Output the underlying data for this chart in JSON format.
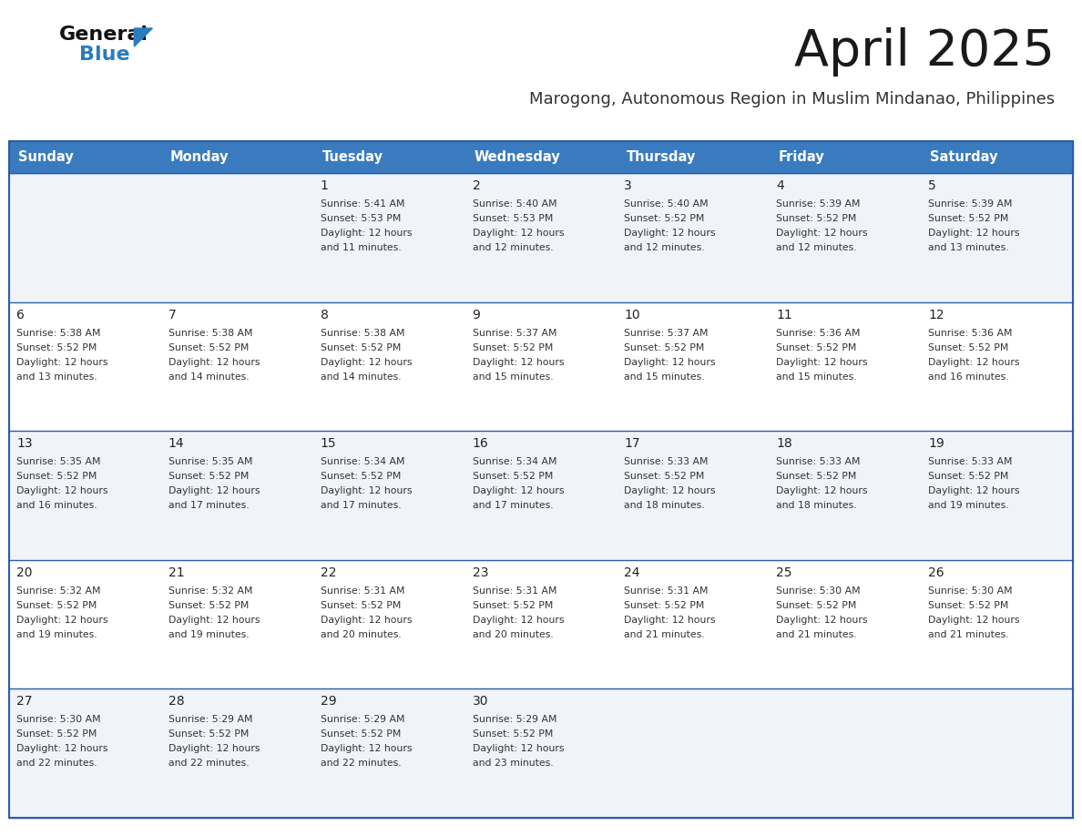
{
  "title": "April 2025",
  "subtitle": "Marogong, Autonomous Region in Muslim Mindanao, Philippines",
  "title_color": "#1a1a1a",
  "subtitle_color": "#333333",
  "header_bg_color": "#3a7bbf",
  "header_text_color": "#ffffff",
  "cell_bg_even": "#f0f4f8",
  "cell_bg_odd": "#ffffff",
  "row_line_color": "#2a5ca8",
  "text_color": "#333333",
  "day_num_color": "#222222",
  "days_of_week": [
    "Sunday",
    "Monday",
    "Tuesday",
    "Wednesday",
    "Thursday",
    "Friday",
    "Saturday"
  ],
  "logo_color1": "#111111",
  "logo_color2": "#2a7bbf",
  "logo_triangle_color": "#2a7bbf",
  "calendar": [
    [
      {
        "day": null,
        "sunrise": null,
        "sunset": null,
        "daylight": null
      },
      {
        "day": null,
        "sunrise": null,
        "sunset": null,
        "daylight": null
      },
      {
        "day": 1,
        "sunrise": "5:41 AM",
        "sunset": "5:53 PM",
        "daylight": "12 hours\nand 11 minutes."
      },
      {
        "day": 2,
        "sunrise": "5:40 AM",
        "sunset": "5:53 PM",
        "daylight": "12 hours\nand 12 minutes."
      },
      {
        "day": 3,
        "sunrise": "5:40 AM",
        "sunset": "5:52 PM",
        "daylight": "12 hours\nand 12 minutes."
      },
      {
        "day": 4,
        "sunrise": "5:39 AM",
        "sunset": "5:52 PM",
        "daylight": "12 hours\nand 12 minutes."
      },
      {
        "day": 5,
        "sunrise": "5:39 AM",
        "sunset": "5:52 PM",
        "daylight": "12 hours\nand 13 minutes."
      }
    ],
    [
      {
        "day": 6,
        "sunrise": "5:38 AM",
        "sunset": "5:52 PM",
        "daylight": "12 hours\nand 13 minutes."
      },
      {
        "day": 7,
        "sunrise": "5:38 AM",
        "sunset": "5:52 PM",
        "daylight": "12 hours\nand 14 minutes."
      },
      {
        "day": 8,
        "sunrise": "5:38 AM",
        "sunset": "5:52 PM",
        "daylight": "12 hours\nand 14 minutes."
      },
      {
        "day": 9,
        "sunrise": "5:37 AM",
        "sunset": "5:52 PM",
        "daylight": "12 hours\nand 15 minutes."
      },
      {
        "day": 10,
        "sunrise": "5:37 AM",
        "sunset": "5:52 PM",
        "daylight": "12 hours\nand 15 minutes."
      },
      {
        "day": 11,
        "sunrise": "5:36 AM",
        "sunset": "5:52 PM",
        "daylight": "12 hours\nand 15 minutes."
      },
      {
        "day": 12,
        "sunrise": "5:36 AM",
        "sunset": "5:52 PM",
        "daylight": "12 hours\nand 16 minutes."
      }
    ],
    [
      {
        "day": 13,
        "sunrise": "5:35 AM",
        "sunset": "5:52 PM",
        "daylight": "12 hours\nand 16 minutes."
      },
      {
        "day": 14,
        "sunrise": "5:35 AM",
        "sunset": "5:52 PM",
        "daylight": "12 hours\nand 17 minutes."
      },
      {
        "day": 15,
        "sunrise": "5:34 AM",
        "sunset": "5:52 PM",
        "daylight": "12 hours\nand 17 minutes."
      },
      {
        "day": 16,
        "sunrise": "5:34 AM",
        "sunset": "5:52 PM",
        "daylight": "12 hours\nand 17 minutes."
      },
      {
        "day": 17,
        "sunrise": "5:33 AM",
        "sunset": "5:52 PM",
        "daylight": "12 hours\nand 18 minutes."
      },
      {
        "day": 18,
        "sunrise": "5:33 AM",
        "sunset": "5:52 PM",
        "daylight": "12 hours\nand 18 minutes."
      },
      {
        "day": 19,
        "sunrise": "5:33 AM",
        "sunset": "5:52 PM",
        "daylight": "12 hours\nand 19 minutes."
      }
    ],
    [
      {
        "day": 20,
        "sunrise": "5:32 AM",
        "sunset": "5:52 PM",
        "daylight": "12 hours\nand 19 minutes."
      },
      {
        "day": 21,
        "sunrise": "5:32 AM",
        "sunset": "5:52 PM",
        "daylight": "12 hours\nand 19 minutes."
      },
      {
        "day": 22,
        "sunrise": "5:31 AM",
        "sunset": "5:52 PM",
        "daylight": "12 hours\nand 20 minutes."
      },
      {
        "day": 23,
        "sunrise": "5:31 AM",
        "sunset": "5:52 PM",
        "daylight": "12 hours\nand 20 minutes."
      },
      {
        "day": 24,
        "sunrise": "5:31 AM",
        "sunset": "5:52 PM",
        "daylight": "12 hours\nand 21 minutes."
      },
      {
        "day": 25,
        "sunrise": "5:30 AM",
        "sunset": "5:52 PM",
        "daylight": "12 hours\nand 21 minutes."
      },
      {
        "day": 26,
        "sunrise": "5:30 AM",
        "sunset": "5:52 PM",
        "daylight": "12 hours\nand 21 minutes."
      }
    ],
    [
      {
        "day": 27,
        "sunrise": "5:30 AM",
        "sunset": "5:52 PM",
        "daylight": "12 hours\nand 22 minutes."
      },
      {
        "day": 28,
        "sunrise": "5:29 AM",
        "sunset": "5:52 PM",
        "daylight": "12 hours\nand 22 minutes."
      },
      {
        "day": 29,
        "sunrise": "5:29 AM",
        "sunset": "5:52 PM",
        "daylight": "12 hours\nand 22 minutes."
      },
      {
        "day": 30,
        "sunrise": "5:29 AM",
        "sunset": "5:52 PM",
        "daylight": "12 hours\nand 23 minutes."
      },
      {
        "day": null,
        "sunrise": null,
        "sunset": null,
        "daylight": null
      },
      {
        "day": null,
        "sunrise": null,
        "sunset": null,
        "daylight": null
      },
      {
        "day": null,
        "sunrise": null,
        "sunset": null,
        "daylight": null
      }
    ]
  ],
  "figwidth": 11.88,
  "figheight": 9.18,
  "dpi": 100
}
